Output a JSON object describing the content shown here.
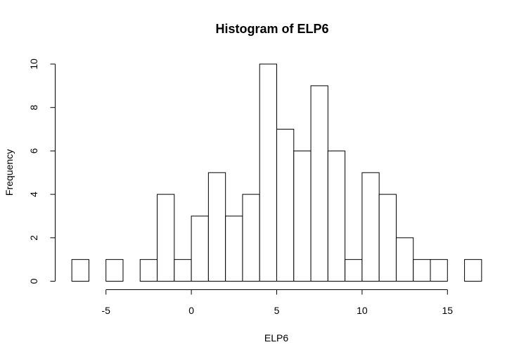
{
  "chart_data": {
    "type": "bar",
    "title": "Histogram of ELP6",
    "xlabel": "ELP6",
    "ylabel": "Frequency",
    "bin_width": 1,
    "bins": [
      {
        "start": -7,
        "end": -6,
        "count": 1
      },
      {
        "start": -6,
        "end": -5,
        "count": 0
      },
      {
        "start": -5,
        "end": -4,
        "count": 1
      },
      {
        "start": -4,
        "end": -3,
        "count": 0
      },
      {
        "start": -3,
        "end": -2,
        "count": 1
      },
      {
        "start": -2,
        "end": -1,
        "count": 4
      },
      {
        "start": -1,
        "end": 0,
        "count": 1
      },
      {
        "start": 0,
        "end": 1,
        "count": 3
      },
      {
        "start": 1,
        "end": 2,
        "count": 5
      },
      {
        "start": 2,
        "end": 3,
        "count": 3
      },
      {
        "start": 3,
        "end": 4,
        "count": 4
      },
      {
        "start": 4,
        "end": 5,
        "count": 10
      },
      {
        "start": 5,
        "end": 6,
        "count": 7
      },
      {
        "start": 6,
        "end": 7,
        "count": 6
      },
      {
        "start": 7,
        "end": 8,
        "count": 9
      },
      {
        "start": 8,
        "end": 9,
        "count": 6
      },
      {
        "start": 9,
        "end": 10,
        "count": 1
      },
      {
        "start": 10,
        "end": 11,
        "count": 5
      },
      {
        "start": 11,
        "end": 12,
        "count": 4
      },
      {
        "start": 12,
        "end": 13,
        "count": 2
      },
      {
        "start": 13,
        "end": 14,
        "count": 1
      },
      {
        "start": 14,
        "end": 15,
        "count": 1
      },
      {
        "start": 15,
        "end": 16,
        "count": 0
      },
      {
        "start": 16,
        "end": 17,
        "count": 1
      }
    ],
    "x_ticks": [
      "-5",
      "0",
      "5",
      "10",
      "15"
    ],
    "x_tick_values": [
      -5,
      0,
      5,
      10,
      15
    ],
    "y_ticks": [
      "0",
      "2",
      "4",
      "6",
      "8",
      "10"
    ],
    "y_tick_values": [
      0,
      2,
      4,
      6,
      8,
      10
    ],
    "xlim": [
      -7,
      17
    ],
    "ylim": [
      0,
      10
    ],
    "grid": false,
    "legend": "none",
    "colors": {
      "bar_fill": "#ffffff",
      "bar_stroke": "#000000"
    }
  }
}
